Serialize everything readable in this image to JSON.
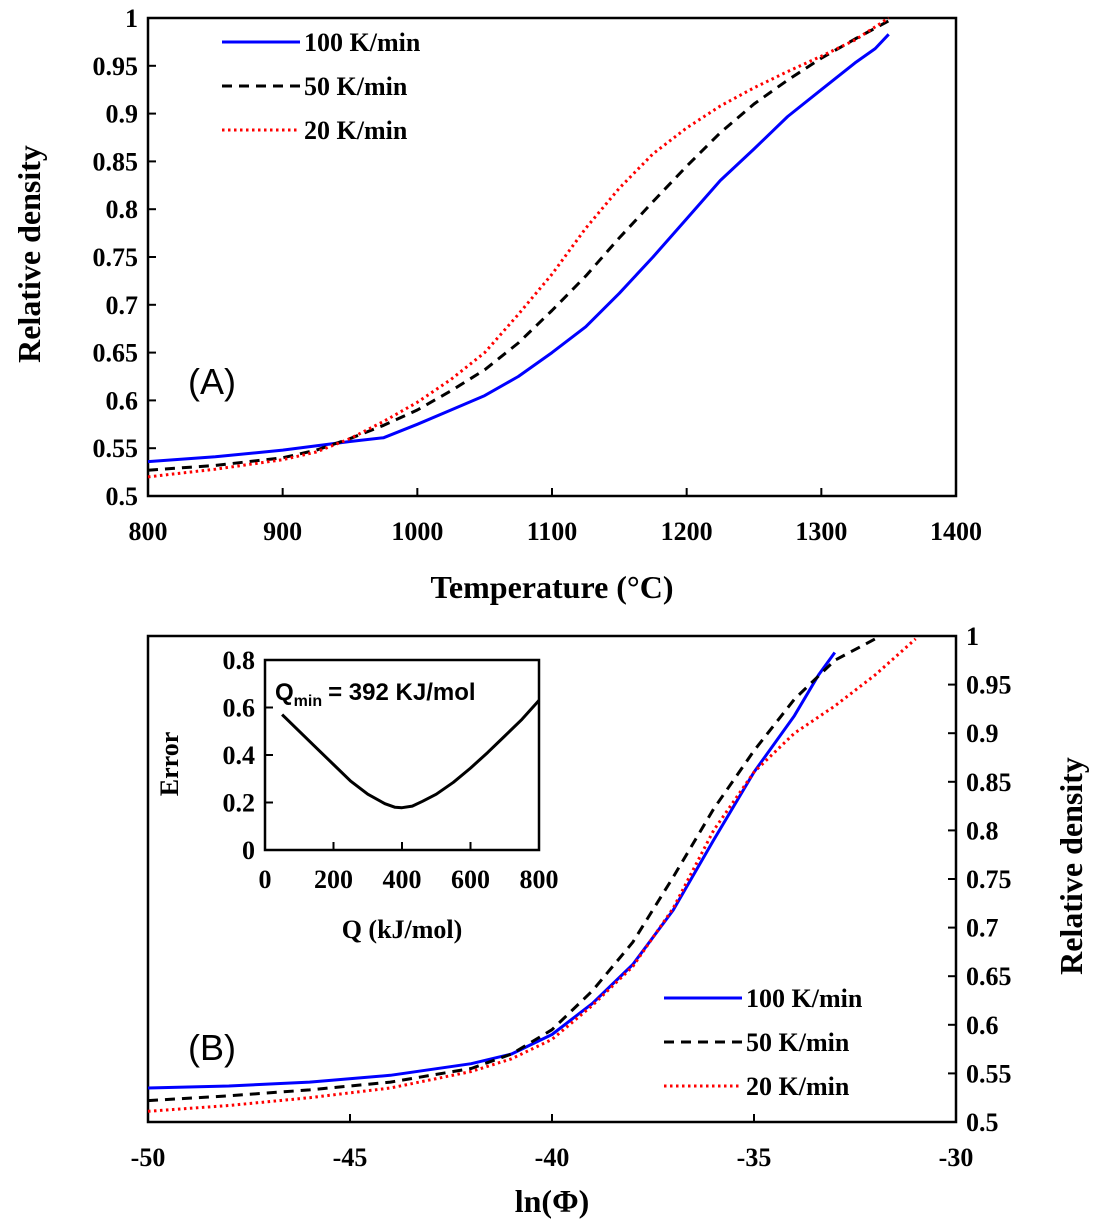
{
  "chart_data": [
    {
      "type": "line",
      "panel_label": "(A)",
      "xlabel": "Temperature (°C)",
      "ylabel": "Relative density",
      "xlim": [
        800,
        1400
      ],
      "ylim": [
        0.5,
        1
      ],
      "xticks": [
        "800",
        "900",
        "1000",
        "1100",
        "1200",
        "1300",
        "1400"
      ],
      "yticks": [
        "0.5",
        "0.55",
        "0.6",
        "0.65",
        "0.7",
        "0.75",
        "0.8",
        "0.85",
        "0.9",
        "0.95",
        "1"
      ],
      "grid": false,
      "legend_position": "top-left",
      "series": [
        {
          "name": "100 K/min",
          "color": "#0000ff",
          "dash": "solid",
          "points": [
            [
              800,
              0.536
            ],
            [
              850,
              0.541
            ],
            [
              900,
              0.548
            ],
            [
              950,
              0.557
            ],
            [
              975,
              0.561
            ],
            [
              1000,
              0.575
            ],
            [
              1025,
              0.59
            ],
            [
              1050,
              0.605
            ],
            [
              1075,
              0.625
            ],
            [
              1100,
              0.65
            ],
            [
              1125,
              0.677
            ],
            [
              1150,
              0.712
            ],
            [
              1175,
              0.75
            ],
            [
              1200,
              0.79
            ],
            [
              1225,
              0.83
            ],
            [
              1250,
              0.863
            ],
            [
              1275,
              0.897
            ],
            [
              1300,
              0.925
            ],
            [
              1325,
              0.953
            ],
            [
              1340,
              0.968
            ],
            [
              1350,
              0.983
            ]
          ]
        },
        {
          "name": "50 K/min",
          "color": "#000000",
          "dash": "dashed",
          "points": [
            [
              800,
              0.527
            ],
            [
              850,
              0.532
            ],
            [
              900,
              0.54
            ],
            [
              925,
              0.548
            ],
            [
              950,
              0.56
            ],
            [
              975,
              0.574
            ],
            [
              1000,
              0.59
            ],
            [
              1025,
              0.61
            ],
            [
              1050,
              0.632
            ],
            [
              1075,
              0.66
            ],
            [
              1100,
              0.694
            ],
            [
              1125,
              0.73
            ],
            [
              1150,
              0.77
            ],
            [
              1175,
              0.808
            ],
            [
              1200,
              0.845
            ],
            [
              1225,
              0.88
            ],
            [
              1250,
              0.91
            ],
            [
              1275,
              0.935
            ],
            [
              1300,
              0.958
            ],
            [
              1325,
              0.978
            ],
            [
              1350,
              0.997
            ]
          ]
        },
        {
          "name": "20 K/min",
          "color": "#ff0000",
          "dash": "dotted",
          "points": [
            [
              800,
              0.52
            ],
            [
              850,
              0.528
            ],
            [
              900,
              0.538
            ],
            [
              925,
              0.546
            ],
            [
              950,
              0.56
            ],
            [
              975,
              0.578
            ],
            [
              1000,
              0.598
            ],
            [
              1025,
              0.622
            ],
            [
              1050,
              0.65
            ],
            [
              1075,
              0.69
            ],
            [
              1100,
              0.732
            ],
            [
              1125,
              0.78
            ],
            [
              1150,
              0.822
            ],
            [
              1175,
              0.858
            ],
            [
              1200,
              0.885
            ],
            [
              1225,
              0.908
            ],
            [
              1250,
              0.927
            ],
            [
              1275,
              0.944
            ],
            [
              1300,
              0.96
            ],
            [
              1325,
              0.977
            ],
            [
              1350,
              1.0
            ]
          ]
        }
      ]
    },
    {
      "type": "line",
      "panel_label": "(B)",
      "xlabel": "ln(Φ)",
      "ylabel": "Relative density",
      "xlim": [
        -50,
        -30
      ],
      "ylim": [
        0.5,
        1
      ],
      "xticks": [
        "-50",
        "-45",
        "-40",
        "-35",
        "-30"
      ],
      "yticks": [
        "0.5",
        "0.55",
        "0.6",
        "0.65",
        "0.7",
        "0.75",
        "0.8",
        "0.85",
        "0.9",
        "0.95",
        "1"
      ],
      "grid": false,
      "legend_position": "bottom-right",
      "series": [
        {
          "name": "100 K/min",
          "color": "#0000ff",
          "dash": "solid",
          "points": [
            [
              -50,
              0.535
            ],
            [
              -48,
              0.537
            ],
            [
              -46,
              0.541
            ],
            [
              -44,
              0.548
            ],
            [
              -42,
              0.56
            ],
            [
              -41,
              0.57
            ],
            [
              -40,
              0.59
            ],
            [
              -39,
              0.622
            ],
            [
              -38,
              0.662
            ],
            [
              -37,
              0.718
            ],
            [
              -36,
              0.79
            ],
            [
              -35,
              0.86
            ],
            [
              -34,
              0.918
            ],
            [
              -33.4,
              0.96
            ],
            [
              -33,
              0.983
            ]
          ]
        },
        {
          "name": "50 K/min",
          "color": "#000000",
          "dash": "dashed",
          "points": [
            [
              -50,
              0.522
            ],
            [
              -48,
              0.527
            ],
            [
              -46,
              0.533
            ],
            [
              -44,
              0.541
            ],
            [
              -42,
              0.555
            ],
            [
              -41,
              0.57
            ],
            [
              -40,
              0.595
            ],
            [
              -39,
              0.635
            ],
            [
              -38,
              0.685
            ],
            [
              -37,
              0.752
            ],
            [
              -36,
              0.822
            ],
            [
              -35,
              0.882
            ],
            [
              -34,
              0.935
            ],
            [
              -33,
              0.975
            ],
            [
              -32,
              0.997
            ]
          ]
        },
        {
          "name": "20 K/min",
          "color": "#ff0000",
          "dash": "dotted",
          "points": [
            [
              -50,
              0.511
            ],
            [
              -48,
              0.517
            ],
            [
              -46,
              0.525
            ],
            [
              -44,
              0.535
            ],
            [
              -42,
              0.552
            ],
            [
              -41,
              0.565
            ],
            [
              -40,
              0.585
            ],
            [
              -39,
              0.62
            ],
            [
              -38,
              0.66
            ],
            [
              -37,
              0.72
            ],
            [
              -36,
              0.8
            ],
            [
              -35,
              0.86
            ],
            [
              -34,
              0.9
            ],
            [
              -33,
              0.928
            ],
            [
              -32,
              0.96
            ],
            [
              -31,
              0.997
            ]
          ]
        }
      ],
      "inset": {
        "type": "line",
        "xlabel": "Q (kJ/mol)",
        "ylabel": "Error",
        "xlim": [
          0,
          800
        ],
        "ylim": [
          0,
          0.8
        ],
        "xticks": [
          "0",
          "200",
          "400",
          "600",
          "800"
        ],
        "yticks": [
          "0",
          "0.2",
          "0.4",
          "0.6",
          "0.8"
        ],
        "annotation": "= 392 KJ/mol",
        "annotation_symbol": "Q",
        "annotation_subscript": "min",
        "series": [
          {
            "color": "#000000",
            "points": [
              [
                50,
                0.57
              ],
              [
                100,
                0.5
              ],
              [
                150,
                0.43
              ],
              [
                200,
                0.36
              ],
              [
                250,
                0.29
              ],
              [
                300,
                0.235
              ],
              [
                350,
                0.195
              ],
              [
                380,
                0.18
              ],
              [
                400,
                0.178
              ],
              [
                430,
                0.185
              ],
              [
                460,
                0.205
              ],
              [
                500,
                0.235
              ],
              [
                550,
                0.285
              ],
              [
                600,
                0.345
              ],
              [
                650,
                0.41
              ],
              [
                700,
                0.48
              ],
              [
                750,
                0.55
              ],
              [
                800,
                0.63
              ]
            ]
          }
        ]
      }
    }
  ]
}
